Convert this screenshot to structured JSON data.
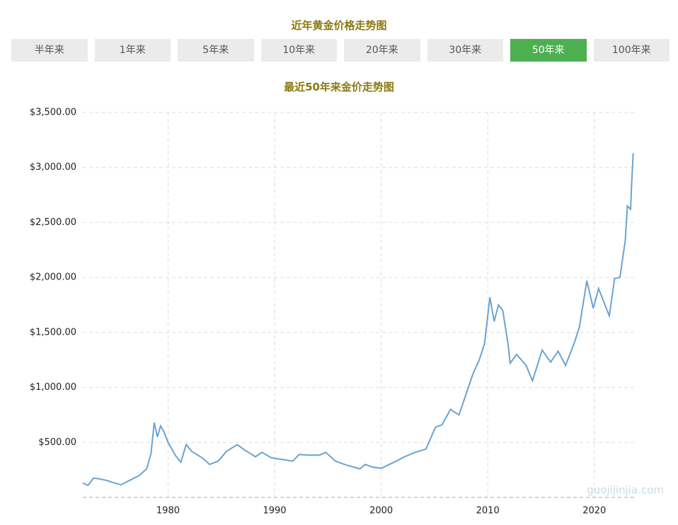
{
  "header": {
    "title": "近年黄金价格走势图"
  },
  "tabs": {
    "items": [
      "半年来",
      "1年来",
      "5年来",
      "10年来",
      "20年来",
      "30年来",
      "50年来",
      "100年来"
    ],
    "active": 6
  },
  "chart_data": {
    "type": "line",
    "title": "最近50年来金价走势图",
    "color": "#6aa3d3",
    "watermark": "guojijinjia.com",
    "x": [
      1972.0,
      1972.5,
      1973.0,
      1973.5,
      1974.2,
      1975.0,
      1975.6,
      1976.3,
      1977.3,
      1978.0,
      1978.4,
      1978.7,
      1979.0,
      1979.3,
      1979.6,
      1980.0,
      1980.7,
      1981.2,
      1981.7,
      1982.2,
      1983.2,
      1983.9,
      1984.7,
      1985.5,
      1986.5,
      1987.2,
      1988.2,
      1988.8,
      1989.7,
      1990.7,
      1991.7,
      1992.3,
      1993.2,
      1994.2,
      1994.8,
      1995.7,
      1996.7,
      1998.0,
      1998.5,
      1999.2,
      2000.0,
      2001.2,
      2002.2,
      2003.2,
      2004.2,
      2005.1,
      2005.7,
      2006.5,
      2007.3,
      2007.9,
      2008.6,
      2009.2,
      2009.7,
      2010.2,
      2010.6,
      2011.0,
      2011.4,
      2011.9,
      2012.1,
      2012.7,
      2013.6,
      2014.2,
      2015.1,
      2015.9,
      2016.6,
      2017.3,
      2018.1,
      2018.6,
      2019.3,
      2019.9,
      2020.4,
      2021.4,
      2021.9,
      2022.4,
      2022.9,
      2023.1,
      2023.4,
      2023.5,
      2023.65
    ],
    "values": [
      130,
      110,
      175,
      170,
      155,
      130,
      115,
      150,
      200,
      260,
      400,
      680,
      550,
      650,
      600,
      500,
      380,
      320,
      480,
      420,
      360,
      300,
      330,
      420,
      480,
      430,
      370,
      410,
      360,
      345,
      330,
      390,
      385,
      385,
      410,
      330,
      295,
      260,
      300,
      275,
      265,
      320,
      370,
      410,
      440,
      640,
      660,
      800,
      750,
      920,
      1120,
      1250,
      1400,
      1820,
      1600,
      1750,
      1700,
      1400,
      1220,
      1300,
      1200,
      1060,
      1340,
      1230,
      1330,
      1200,
      1400,
      1550,
      1970,
      1720,
      1900,
      1650,
      1990,
      2000,
      2330,
      2650,
      2620,
      2850,
      3130
    ],
    "xlim": [
      1972,
      2023.8
    ],
    "xticks": [
      1980,
      1990,
      2000,
      2010,
      2020
    ],
    "ylim": [
      0,
      3500
    ],
    "yticks": [
      {
        "value": 500,
        "label": "$500.00"
      },
      {
        "value": 1000,
        "label": "$1,000.00"
      },
      {
        "value": 1500,
        "label": "$1,500.00"
      },
      {
        "value": 2000,
        "label": "$2,000.00"
      },
      {
        "value": 2500,
        "label": "$2,500.00"
      },
      {
        "value": 3000,
        "label": "$3,000.00"
      },
      {
        "value": 3500,
        "label": "$3,500.00"
      }
    ],
    "grid": true
  }
}
